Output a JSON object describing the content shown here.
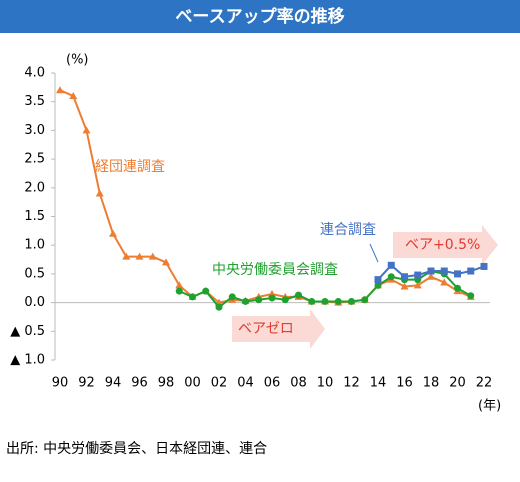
{
  "chart_data": {
    "type": "line",
    "title": "ベースアップ率の推移",
    "y_unit": "(%)",
    "x_unit": "(年)",
    "categories": [
      "90",
      null,
      "92",
      null,
      "94",
      null,
      "96",
      null,
      "98",
      null,
      "00",
      null,
      "02",
      null,
      "04",
      null,
      "06",
      null,
      "08",
      null,
      "10",
      null,
      "12",
      null,
      "14",
      null,
      "16",
      null,
      "18",
      null,
      "20",
      null,
      "22"
    ],
    "series": [
      {
        "name": "経団連調査",
        "color": "#ed7d31",
        "marker": "triangle",
        "values": [
          3.7,
          3.6,
          3.0,
          1.9,
          1.2,
          0.8,
          0.8,
          0.8,
          0.7,
          0.3,
          0.1,
          0.2,
          0.0,
          0.05,
          0.03,
          0.1,
          0.15,
          0.1,
          0.1,
          0.02,
          0.02,
          0.0,
          0.02,
          0.05,
          0.3,
          0.4,
          0.28,
          0.3,
          0.45,
          0.35,
          0.2,
          0.1,
          null
        ]
      },
      {
        "name": "中央労働委員会調査",
        "color": "#1fa12f",
        "marker": "circle",
        "values": [
          null,
          null,
          null,
          null,
          null,
          null,
          null,
          null,
          null,
          0.2,
          0.1,
          0.2,
          -0.08,
          0.1,
          0.02,
          0.05,
          0.08,
          0.05,
          0.13,
          0.02,
          0.02,
          0.02,
          0.02,
          0.05,
          0.3,
          0.45,
          0.4,
          0.4,
          0.55,
          0.5,
          0.25,
          0.12,
          null
        ]
      },
      {
        "name": "連合調査",
        "color": "#4472c4",
        "marker": "square",
        "values": [
          null,
          null,
          null,
          null,
          null,
          null,
          null,
          null,
          null,
          null,
          null,
          null,
          null,
          null,
          null,
          null,
          null,
          null,
          null,
          null,
          null,
          null,
          null,
          null,
          0.4,
          0.65,
          0.45,
          0.48,
          0.55,
          0.55,
          0.5,
          0.55,
          0.63
        ]
      }
    ],
    "ylim": [
      -1.0,
      4.0
    ],
    "yticks": [
      {
        "value": 4.0,
        "label": "4.0"
      },
      {
        "value": 3.5,
        "label": "3.5"
      },
      {
        "value": 3.0,
        "label": "3.0"
      },
      {
        "value": 2.5,
        "label": "2.5"
      },
      {
        "value": 2.0,
        "label": "2.0"
      },
      {
        "value": 1.5,
        "label": "1.5"
      },
      {
        "value": 1.0,
        "label": "1.0"
      },
      {
        "value": 0.5,
        "label": "0.5"
      },
      {
        "value": 0,
        "label": "0.0"
      },
      {
        "value": -0.5,
        "label": "▲ 0.5"
      },
      {
        "value": -1.0,
        "label": "▲ 1.0"
      }
    ],
    "annotations": [
      "ベアゼロ",
      "ベア+0.5%"
    ],
    "source": "出所: 中央労働委員会、日本経団連、連合"
  }
}
